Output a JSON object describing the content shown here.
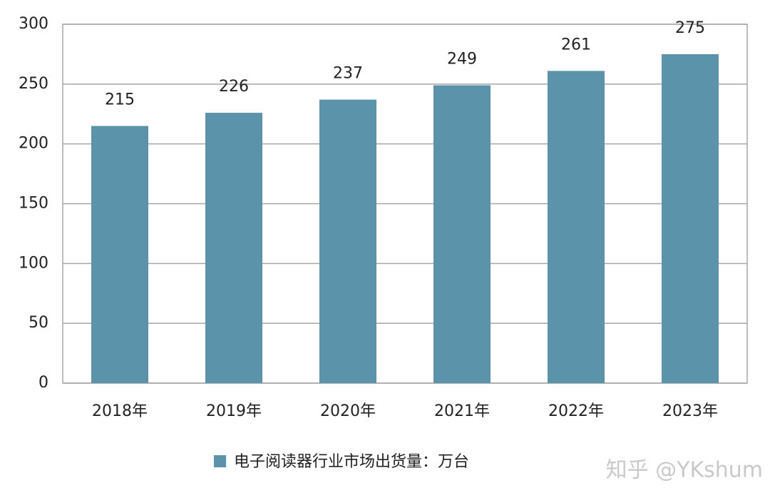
{
  "chart_data": {
    "type": "bar",
    "categories": [
      "2018年",
      "2019年",
      "2020年",
      "2021年",
      "2022年",
      "2023年"
    ],
    "series": [
      {
        "name": "电子阅读器行业市场出货量：万台",
        "color": "#5b93ab",
        "values": [
          215,
          226,
          237,
          249,
          261,
          275
        ]
      }
    ],
    "ylim": [
      0,
      300
    ],
    "yticks": [
      0,
      50,
      100,
      150,
      200,
      250,
      300
    ],
    "grid": true,
    "legend": "bottom",
    "watermark": "知乎 @YKshum"
  }
}
